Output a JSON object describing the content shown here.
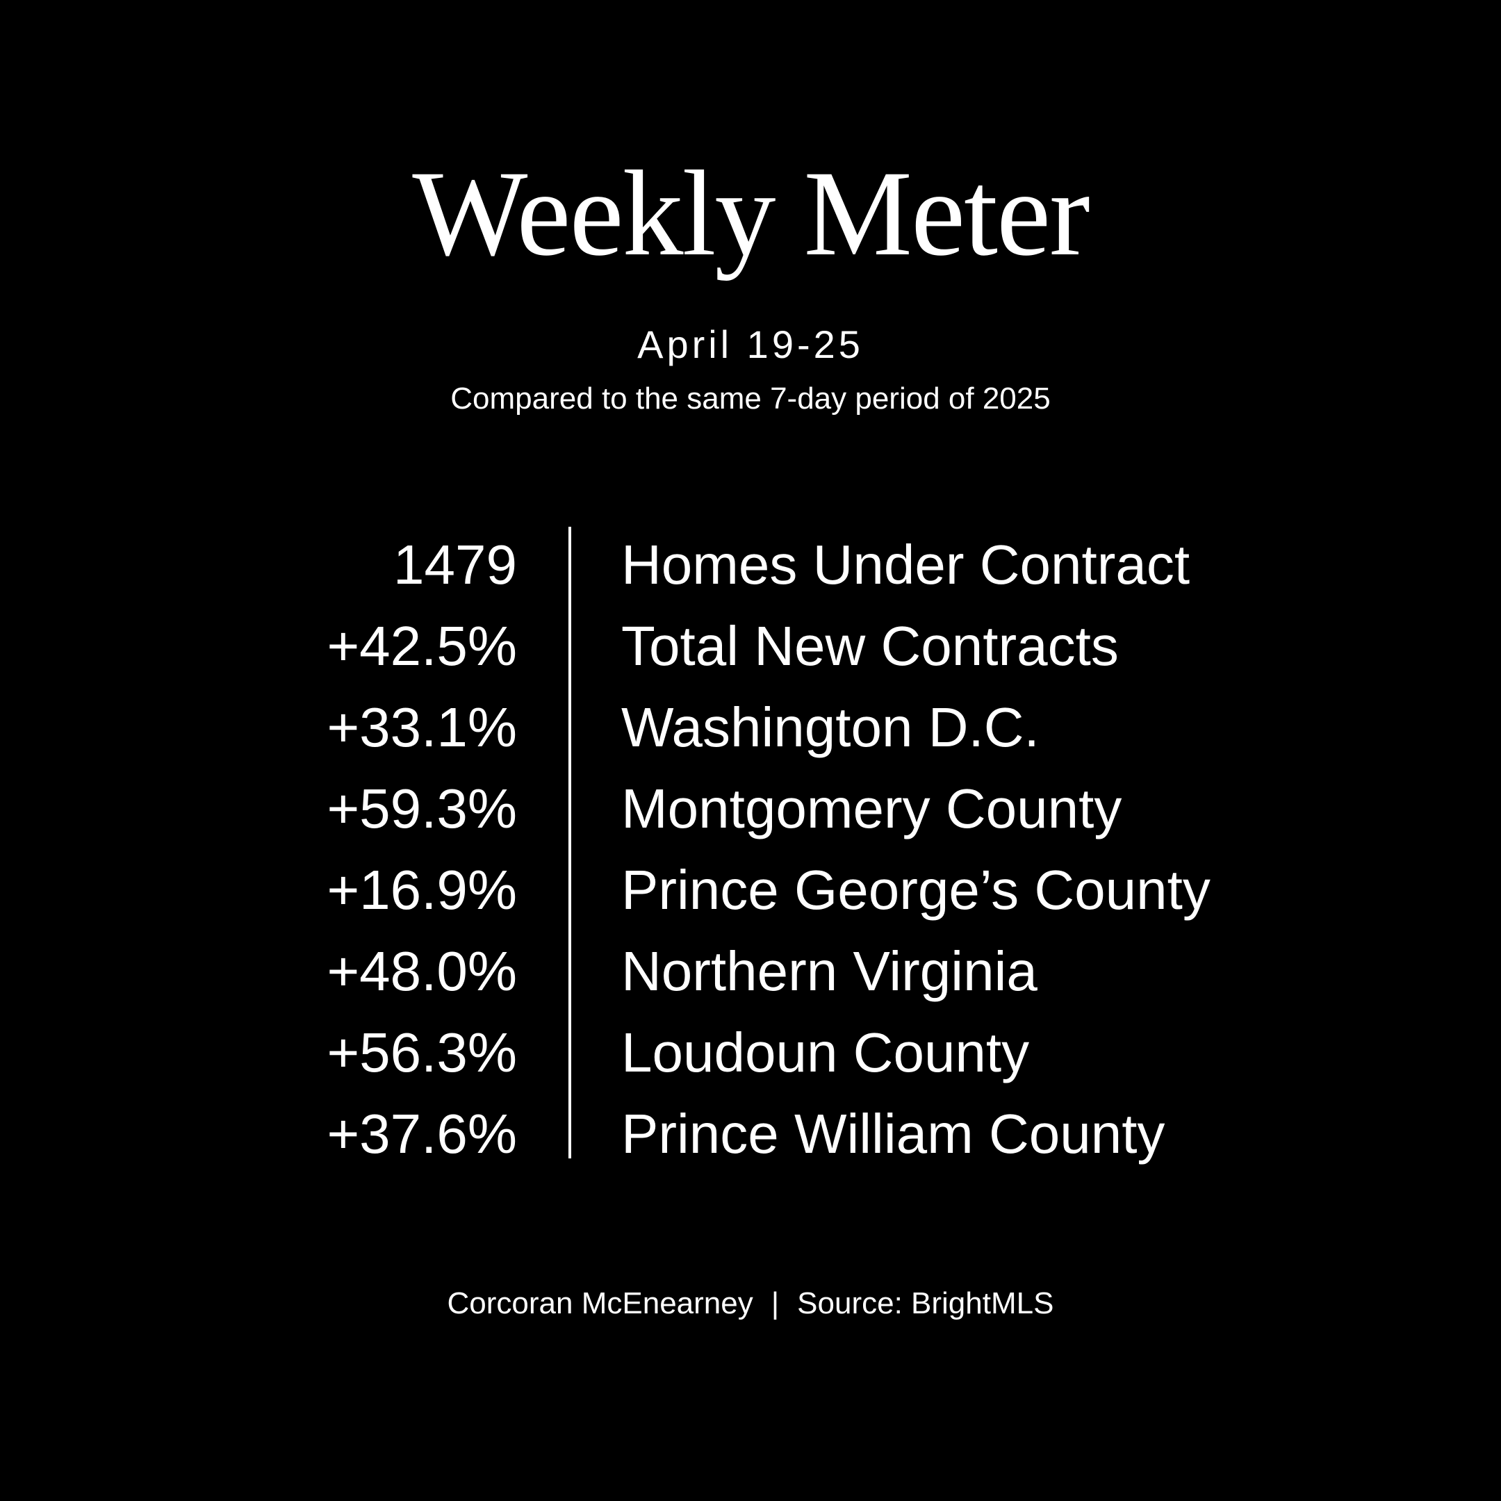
{
  "title": "Weekly Meter",
  "date_range": "April 19-25",
  "comparison": "Compared to the same 7-day period of 2025",
  "rows": [
    {
      "value": "1479",
      "label": "Homes Under Contract"
    },
    {
      "value": "+42.5%",
      "label": "Total New Contracts"
    },
    {
      "value": "+33.1%",
      "label": "Washington D.C."
    },
    {
      "value": "+59.3%",
      "label": "Montgomery County"
    },
    {
      "value": "+16.9%",
      "label": "Prince George’s County"
    },
    {
      "value": "+48.0%",
      "label": "Northern Virginia"
    },
    {
      "value": "+56.3%",
      "label": "Loudoun County"
    },
    {
      "value": "+37.6%",
      "label": "Prince William County"
    }
  ],
  "footer": {
    "brand": "Corcoran McEnearney",
    "separator": "|",
    "source": "Source: BrightMLS"
  },
  "colors": {
    "background": "#000000",
    "text": "#ffffff"
  }
}
